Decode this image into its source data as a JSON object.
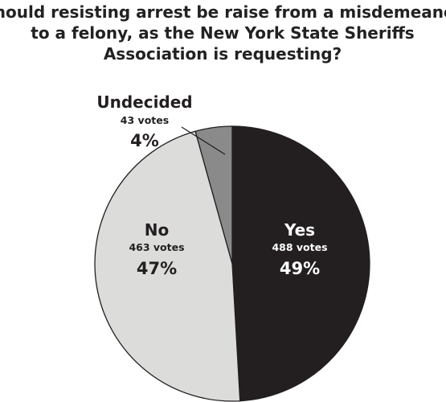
{
  "chart_data": {
    "type": "pie",
    "title_lines": [
      "Should resisting arrest be raise from a misdemeanor",
      "to a felony, as the New York State Sheriffs",
      "Association is requesting?"
    ],
    "slices": [
      {
        "label": "Yes",
        "votes_text": "488 votes",
        "votes": 488,
        "percent_text": "49%",
        "color": "#231f20",
        "text_color": "#ffffff"
      },
      {
        "label": "No",
        "votes_text": "463 votes",
        "votes": 463,
        "percent_text": "47%",
        "color": "#dcdcdb",
        "text_color": "#231f20"
      },
      {
        "label": "Undecided",
        "votes_text": "43 votes",
        "votes": 43,
        "percent_text": "4%",
        "color": "#8a8a8a",
        "text_color": "#231f20"
      }
    ],
    "start_angle": "12 o'clock",
    "direction": "clockwise",
    "stroke_color": "#231f20"
  }
}
